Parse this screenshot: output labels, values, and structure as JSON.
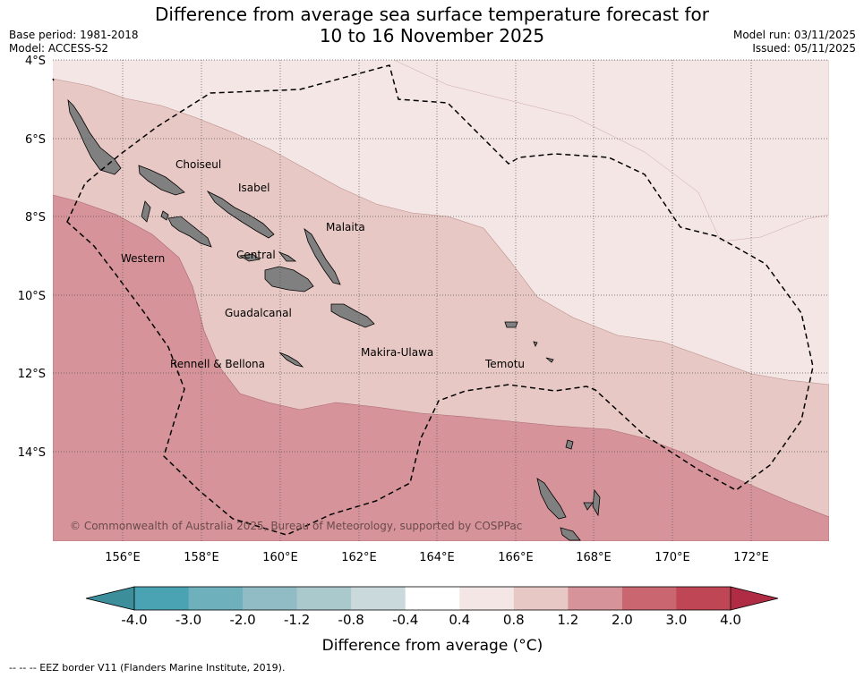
{
  "title_line1": "Difference from average sea surface temperature forecast for",
  "title_line2": "10 to 16 November 2025",
  "base_period": "Base period: 1981-2018",
  "model": "Model: ACCESS-S2",
  "model_run": "Model run: 03/11/2025",
  "issued": "Issued: 05/11/2025",
  "lat_ticks": [
    "4°S",
    "6°S",
    "8°S",
    "10°S",
    "12°S",
    "14°S"
  ],
  "lon_ticks": [
    "156°E",
    "158°E",
    "160°E",
    "162°E",
    "164°E",
    "166°E",
    "168°E",
    "170°E",
    "172°E"
  ],
  "places": [
    "Choiseul",
    "Isabel",
    "Malaita",
    "Western",
    "Central",
    "Guadalcanal",
    "Makira-Ulawa",
    "Rennell & Bellona",
    "Temotu"
  ],
  "copyright": "© Commonwealth of Australia 2025, Bureau of Meteorology, supported by COSPPac",
  "colorbar": {
    "labels": [
      "-4.0",
      "-3.0",
      "-2.0",
      "-1.2",
      "-0.8",
      "-0.4",
      "0.4",
      "0.8",
      "1.2",
      "2.0",
      "3.0",
      "4.0"
    ],
    "colors": [
      "#4aa3b2",
      "#6fb0bd",
      "#91bcc5",
      "#a9c9cd",
      "#c9d9dc",
      "#ffffff",
      "#f4e6e5",
      "#e8c8c4",
      "#d6949a",
      "#c9666f",
      "#be4655"
    ],
    "under_color": "#3d8e9b",
    "over_color": "#b02c44",
    "label": "Difference from average (°C)"
  },
  "eez_note": "-- -- -- EEZ border V11 (Flanders Marine Institute, 2019)."
}
